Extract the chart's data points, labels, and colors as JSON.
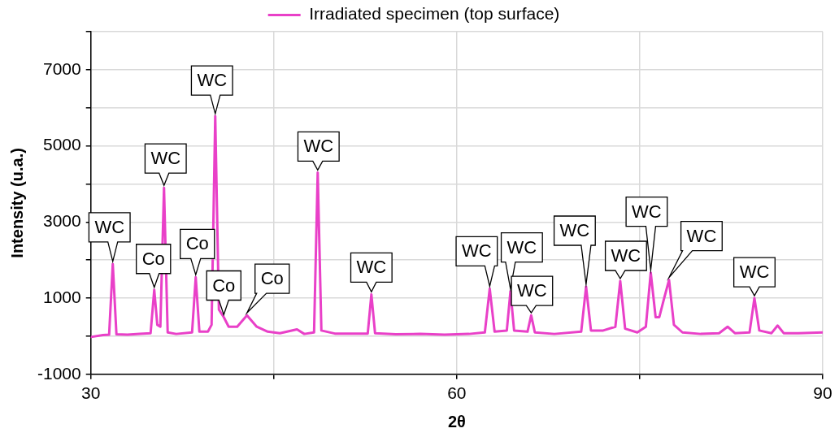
{
  "chart_data": {
    "type": "line",
    "xlabel": "2θ",
    "ylabel": "Intensity (u.a.)",
    "legend": "top",
    "grid": true,
    "xlim": [
      30,
      90
    ],
    "ylim": [
      -1000,
      8000
    ],
    "xticks": [
      30,
      {
        "value": 45,
        "label": null
      },
      60,
      {
        "value": 75,
        "label": null
      },
      90
    ],
    "yticks": [
      -1000,
      {
        "value": 0,
        "label": null
      },
      1000,
      {
        "value": 2000,
        "label": null
      },
      3000,
      {
        "value": 4000,
        "label": null
      },
      5000,
      {
        "value": 6000,
        "label": null
      },
      7000,
      {
        "value": 8000,
        "label": null
      }
    ],
    "series": [
      {
        "name": "Irradiated specimen (top surface)",
        "color": "#e940c8",
        "x": [
          30.0,
          31.0,
          31.5,
          31.8,
          32.1,
          33.0,
          34.0,
          34.9,
          35.2,
          35.45,
          35.7,
          36.0,
          36.3,
          37.0,
          38.3,
          38.6,
          38.9,
          39.6,
          39.9,
          40.2,
          40.5,
          40.9,
          41.3,
          42.0,
          42.8,
          43.6,
          44.5,
          45.5,
          46.9,
          47.5,
          48.3,
          48.6,
          48.9,
          50.0,
          52.7,
          53.0,
          53.3,
          55.0,
          57.0,
          59.0,
          61.0,
          62.3,
          62.7,
          63.1,
          64.1,
          64.4,
          64.7,
          65.8,
          66.1,
          66.4,
          68.0,
          70.2,
          70.6,
          71.0,
          72.0,
          73.0,
          73.4,
          73.8,
          74.8,
          75.5,
          75.9,
          76.3,
          76.6,
          77.0,
          77.4,
          77.8,
          78.5,
          80.0,
          81.5,
          82.2,
          82.8,
          84.0,
          84.4,
          84.8,
          85.8,
          86.3,
          86.8,
          88.0,
          90.0
        ],
        "values": [
          -20,
          30,
          40,
          1900,
          50,
          40,
          60,
          80,
          1220,
          300,
          250,
          3900,
          100,
          60,
          100,
          1550,
          120,
          120,
          300,
          5780,
          700,
          500,
          250,
          250,
          550,
          250,
          120,
          80,
          180,
          60,
          100,
          4300,
          150,
          70,
          70,
          1100,
          80,
          50,
          60,
          40,
          60,
          100,
          1250,
          120,
          150,
          1180,
          150,
          120,
          550,
          100,
          60,
          120,
          1300,
          150,
          150,
          250,
          1450,
          200,
          100,
          250,
          1670,
          500,
          500,
          1000,
          1480,
          300,
          100,
          60,
          80,
          250,
          80,
          100,
          1000,
          150,
          80,
          280,
          80,
          80,
          100
        ]
      }
    ],
    "annotations": [
      {
        "text": "WC",
        "x": 31.8,
        "y": 1900
      },
      {
        "text": "Co",
        "x": 35.2,
        "y": 1220
      },
      {
        "text": "WC",
        "x": 36.0,
        "y": 3900
      },
      {
        "text": "Co",
        "x": 38.6,
        "y": 1550
      },
      {
        "text": "WC",
        "x": 40.2,
        "y": 5780
      },
      {
        "text": "Co",
        "x": 40.9,
        "y": 500
      },
      {
        "text": "Co",
        "x": 42.8,
        "y": 550
      },
      {
        "text": "WC",
        "x": 48.6,
        "y": 4300
      },
      {
        "text": "WC",
        "x": 53.0,
        "y": 1100
      },
      {
        "text": "WC",
        "x": 62.7,
        "y": 1250
      },
      {
        "text": "WC",
        "x": 64.4,
        "y": 1180
      },
      {
        "text": "WC",
        "x": 66.1,
        "y": 550
      },
      {
        "text": "WC",
        "x": 70.6,
        "y": 1300
      },
      {
        "text": "WC",
        "x": 73.4,
        "y": 1450
      },
      {
        "text": "WC",
        "x": 75.9,
        "y": 1670
      },
      {
        "text": "WC",
        "x": 77.4,
        "y": 1480
      },
      {
        "text": "WC",
        "x": 84.4,
        "y": 1000
      }
    ]
  }
}
